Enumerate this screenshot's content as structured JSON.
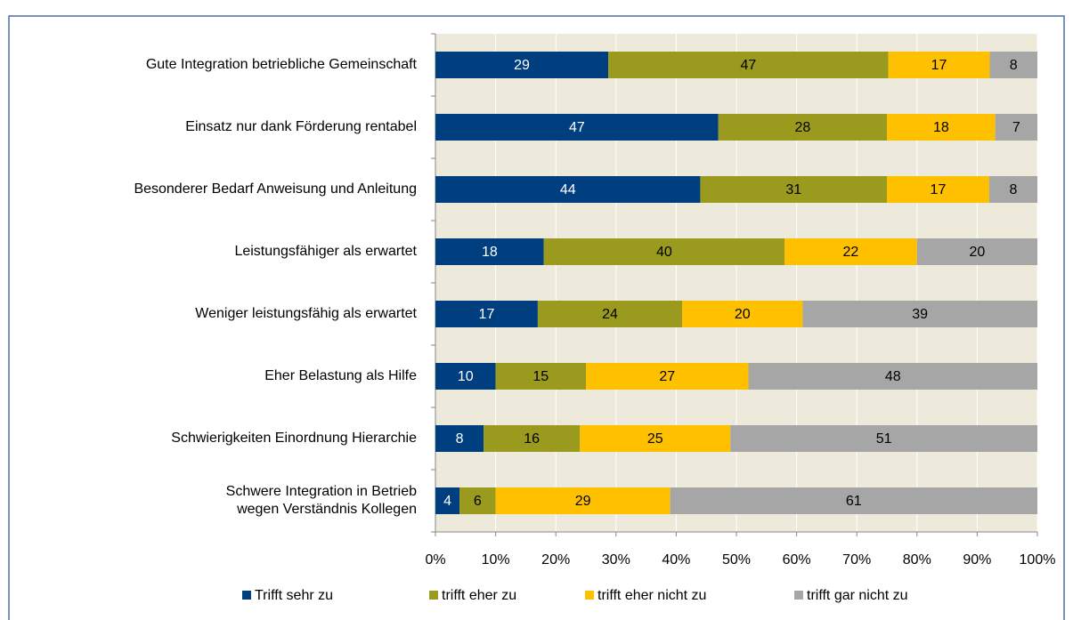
{
  "chart_data": {
    "type": "bar",
    "orientation": "horizontal",
    "stacked": "percent",
    "categories": [
      "Gute Integration betriebliche Gemeinschaft",
      "Einsatz nur dank Förderung rentabel",
      "Besonderer Bedarf Anweisung und Anleitung",
      "Leistungsfähiger als erwartet",
      "Weniger leistungsfähig als erwartet",
      "Eher Belastung als Hilfe",
      "Schwierigkeiten Einordnung Hierarchie",
      "Schwere Integration in Betrieb\nwegen Verständnis Kollegen"
    ],
    "series": [
      {
        "name": "Trifft sehr zu",
        "color": "#003f7f",
        "label_color": "#ffffff",
        "values": [
          29,
          47,
          44,
          18,
          17,
          10,
          8,
          4
        ]
      },
      {
        "name": "trifft eher zu",
        "color": "#9a9a1f",
        "label_color": "#000000",
        "values": [
          47,
          28,
          31,
          40,
          24,
          15,
          16,
          6
        ]
      },
      {
        "name": "trifft eher nicht zu",
        "color": "#ffc000",
        "label_color": "#000000",
        "values": [
          17,
          18,
          17,
          22,
          20,
          27,
          25,
          29
        ]
      },
      {
        "name": "trifft gar nicht zu",
        "color": "#a6a6a6",
        "label_color": "#000000",
        "values": [
          8,
          7,
          8,
          20,
          39,
          48,
          51,
          61
        ]
      }
    ],
    "xlim": [
      0,
      100
    ],
    "xticks": [
      {
        "value": 0,
        "label": "0%"
      },
      {
        "value": 10,
        "label": "10%"
      },
      {
        "value": 20,
        "label": "20%"
      },
      {
        "value": 30,
        "label": "30%"
      },
      {
        "value": 40,
        "label": "40%"
      },
      {
        "value": 50,
        "label": "50%"
      },
      {
        "value": 60,
        "label": "60%"
      },
      {
        "value": 70,
        "label": "70%"
      },
      {
        "value": 80,
        "label": "80%"
      },
      {
        "value": 90,
        "label": "90%"
      },
      {
        "value": 100,
        "label": "100%"
      }
    ],
    "grid": true,
    "legend": "bottom"
  }
}
